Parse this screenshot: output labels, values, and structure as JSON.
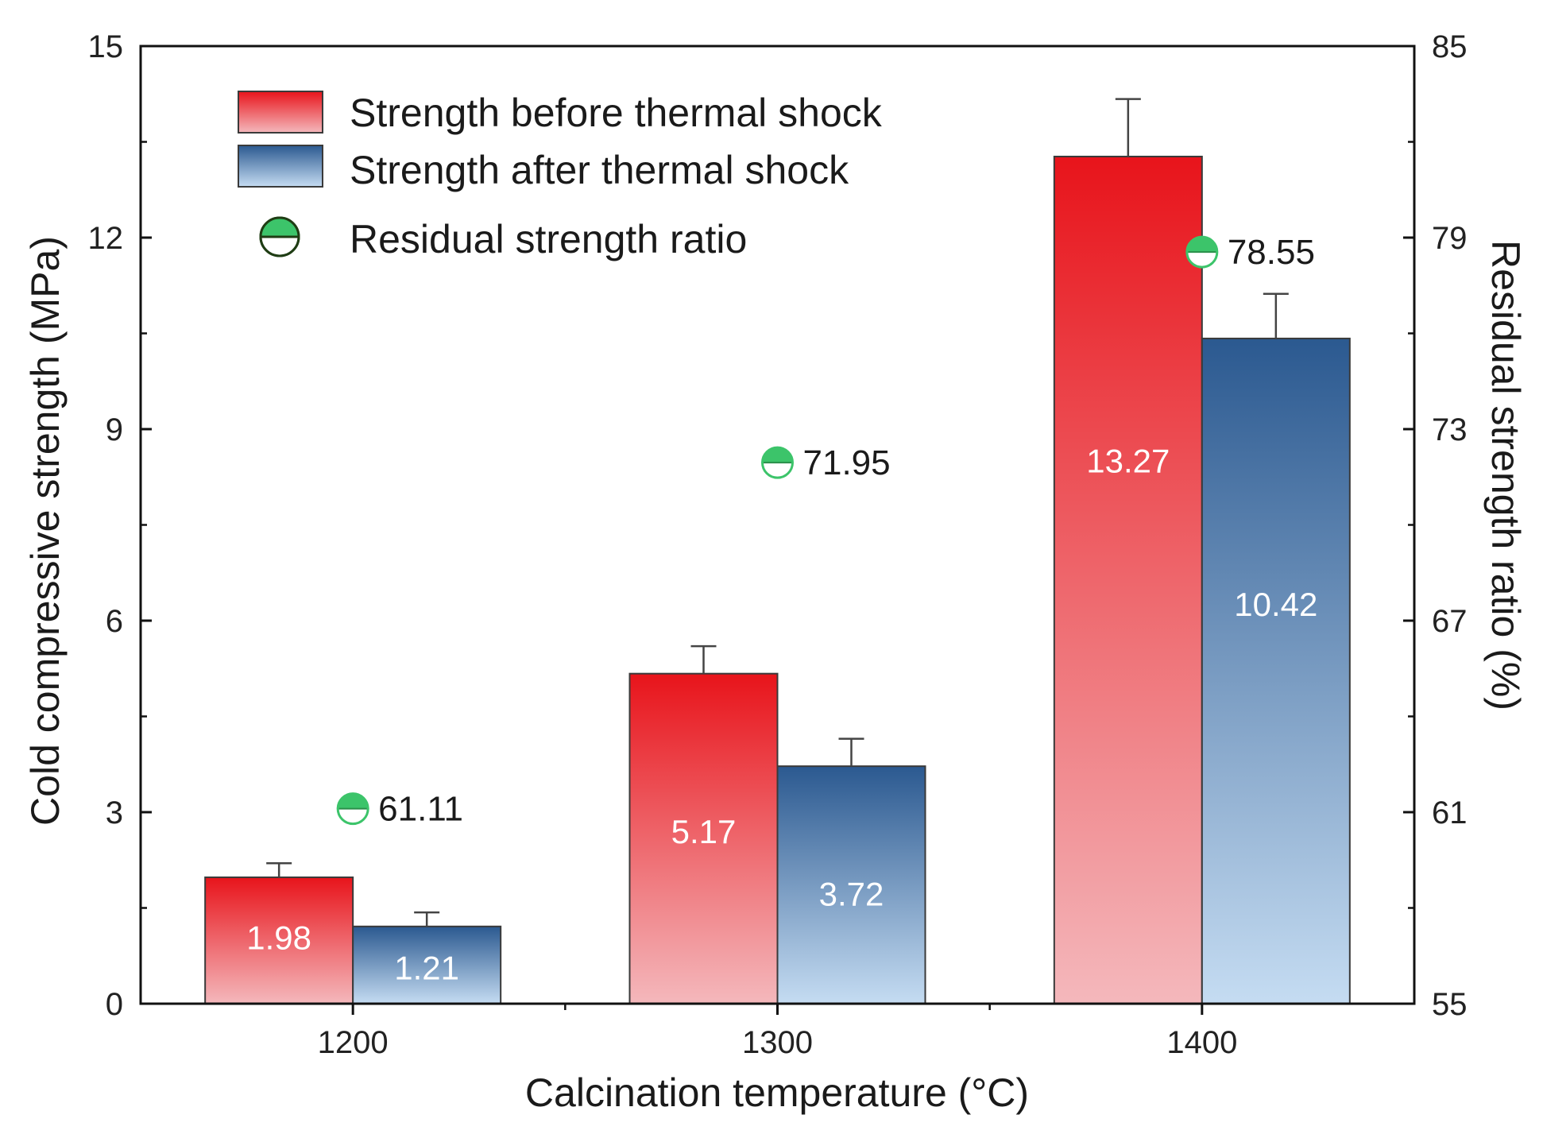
{
  "chart_data": {
    "type": "bar",
    "categories": [
      "1200",
      "1300",
      "1400"
    ],
    "xlabel": "Calcination temperature (°C)",
    "ylabel": "Cold compressive strength (MPa)",
    "ylabel_right": "Residual strength ratio (%)",
    "ylim": [
      0,
      15
    ],
    "yticks": [
      0,
      3,
      6,
      9,
      12,
      15
    ],
    "ylim_right": [
      55,
      85
    ],
    "yticks_right": [
      55,
      61,
      67,
      73,
      79,
      85
    ],
    "series": [
      {
        "name": "Strength before thermal shock",
        "values": [
          1.98,
          5.17,
          13.27
        ],
        "errors": [
          0.22,
          0.43,
          0.9
        ],
        "labels": [
          "1.98",
          "5.17",
          "13.27"
        ]
      },
      {
        "name": "Strength after thermal shock",
        "values": [
          1.21,
          3.72,
          10.42
        ],
        "errors": [
          0.22,
          0.43,
          0.7
        ],
        "labels": [
          "1.21",
          "3.72",
          "10.42"
        ]
      }
    ],
    "ratio": {
      "name": "Residual strength ratio",
      "values": [
        61.11,
        71.95,
        78.55
      ],
      "labels": [
        "61.11",
        "71.95",
        "78.55"
      ]
    },
    "colors": {
      "before_top": "#e8141b",
      "before_bottom": "#f4b8bc",
      "after_top": "#2b5990",
      "after_bottom": "#c5dcf2",
      "ratio_marker": "#3cc46a",
      "axis": "#111111"
    },
    "legend_position": "top-left"
  }
}
